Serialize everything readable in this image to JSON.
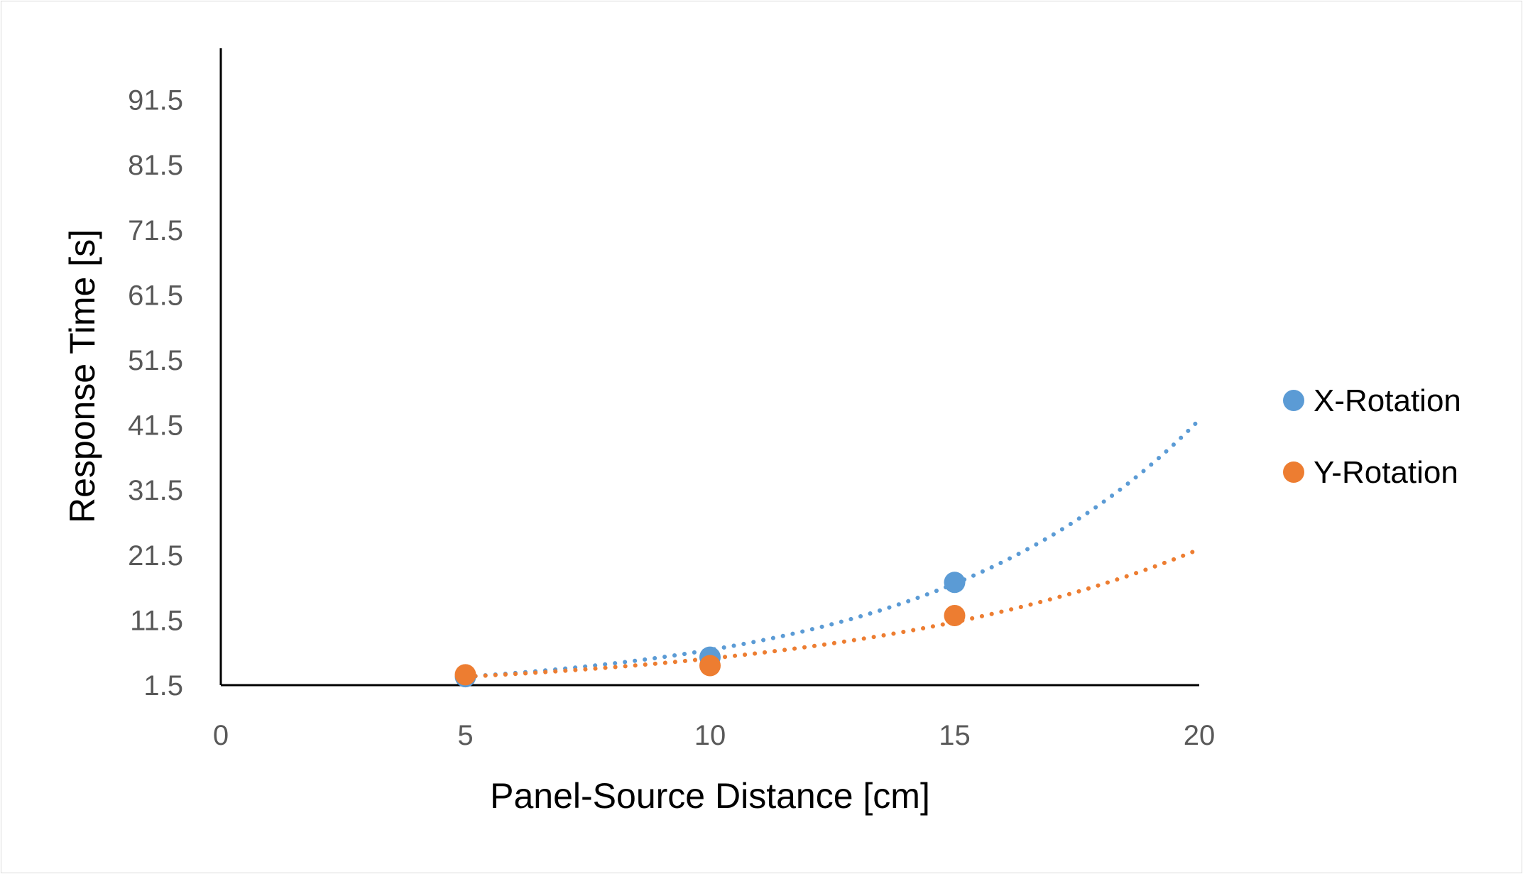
{
  "chart_data": {
    "type": "scatter",
    "title": "",
    "xlabel": "Panel-Source Distance [cm]",
    "ylabel": "Response Time [s]",
    "xlim": [
      0,
      20
    ],
    "ylim": [
      1.5,
      101.5
    ],
    "x_ticks": [
      "0",
      "5",
      "10",
      "15",
      "20"
    ],
    "y_ticks": [
      "1.5",
      "11.5",
      "21.5",
      "31.5",
      "41.5",
      "51.5",
      "61.5",
      "71.5",
      "81.5",
      "91.5"
    ],
    "grid": false,
    "legend_position": "right",
    "trendline": "exponential, dotted",
    "series": [
      {
        "name": "X-Rotation",
        "color": "#5B9BD5",
        "x": [
          5,
          10,
          15
        ],
        "y": [
          2.8,
          5.8,
          17.3
        ],
        "trend": [
          [
            5,
            2.8
          ],
          [
            10,
            6.5
          ],
          [
            15,
            16.4
          ],
          [
            20,
            42.3
          ]
        ]
      },
      {
        "name": "Y-Rotation",
        "color": "#ED7D31",
        "x": [
          5,
          10,
          15
        ],
        "y": [
          3.1,
          4.5,
          12.2
        ],
        "trend": [
          [
            5,
            2.8
          ],
          [
            10,
            5.4
          ],
          [
            15,
            11.0
          ],
          [
            20,
            22.4
          ]
        ]
      }
    ]
  }
}
